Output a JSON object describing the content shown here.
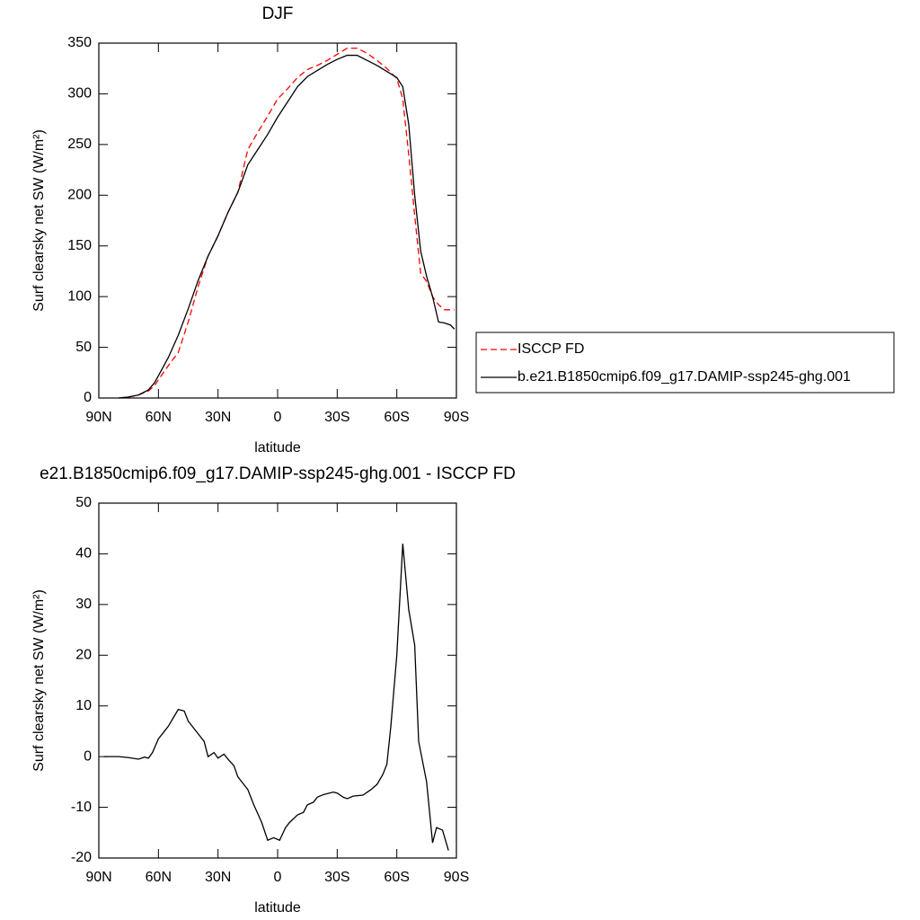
{
  "chart_data": [
    {
      "type": "line",
      "title": "DJF",
      "x_label": "latitude",
      "y_label": "Surf clearsky net SW (W/m²)",
      "x": [
        80,
        75,
        70,
        65,
        62,
        60,
        55,
        50,
        45,
        40,
        35,
        30,
        25,
        20,
        15,
        10,
        5,
        0,
        -5,
        -10,
        -15,
        -20,
        -25,
        -30,
        -35,
        -40,
        -45,
        -50,
        -55,
        -60,
        -63,
        -66,
        -69,
        -72,
        -75,
        -78,
        -81,
        -84,
        -87,
        -89
      ],
      "series": [
        {
          "name": "ISCCP FD",
          "color": "#ff0000",
          "line_style": "dashed",
          "values": [
            0,
            1,
            3,
            7,
            12,
            18,
            32,
            45,
            75,
            110,
            140,
            160,
            183,
            203,
            245,
            262,
            278,
            295,
            305,
            316,
            324,
            328,
            333,
            339,
            345,
            345,
            340,
            333,
            325,
            315,
            295,
            240,
            180,
            123,
            115,
            100,
            92,
            87,
            87,
            87
          ]
        },
        {
          "name": "b.e21.B1850cmip6.f09_g17.DAMIP-ssp245-ghg.001",
          "color": "#000000",
          "line_style": "solid",
          "values": [
            0,
            1,
            3,
            8,
            15,
            22,
            40,
            62,
            88,
            116,
            140,
            160,
            183,
            203,
            230,
            245,
            260,
            277,
            292,
            307,
            317,
            323,
            329,
            334,
            338,
            338,
            333,
            328,
            322,
            316,
            307,
            270,
            200,
            145,
            120,
            100,
            75,
            74,
            72,
            68
          ]
        }
      ],
      "xlim": [
        90,
        -90
      ],
      "xticks": [
        {
          "value": 90,
          "label": "90N"
        },
        {
          "value": 60,
          "label": "60N"
        },
        {
          "value": 30,
          "label": "30N"
        },
        0,
        {
          "value": -30,
          "label": "30S"
        },
        {
          "value": -60,
          "label": "60S"
        },
        {
          "value": -90,
          "label": "90S"
        }
      ],
      "ylim": [
        0,
        350
      ],
      "yticks": [
        0,
        50,
        100,
        150,
        200,
        250,
        300,
        350
      ],
      "legend": "right"
    },
    {
      "type": "line",
      "title": "e21.B1850cmip6.f09_g17.DAMIP-ssp245-ghg.001 - ISCCP FD",
      "x_label": "latitude",
      "y_label": "Surf clearsky net SW (W/m²)",
      "x": [
        87.5,
        80,
        75,
        70,
        67,
        65,
        63,
        60,
        57,
        55,
        52,
        50,
        47,
        45,
        40,
        37,
        35,
        32,
        30,
        27,
        25,
        22,
        20,
        18,
        15,
        12,
        8,
        5,
        2,
        -1,
        -4,
        -6,
        -10,
        -13,
        -15,
        -18,
        -20,
        -23,
        -28,
        -30,
        -33,
        -35,
        -38,
        -43,
        -47,
        -50,
        -53,
        -55,
        -57,
        -60,
        -63,
        -66,
        -69,
        -71,
        -75,
        -78,
        -80,
        -83,
        -86
      ],
      "series": [
        {
          "color": "#000000",
          "line_style": "solid",
          "values": [
            0,
            0,
            -0.2,
            -0.5,
            -0.1,
            -0.3,
            0.8,
            3.5,
            5,
            6,
            8,
            9.3,
            9,
            7,
            4.5,
            3,
            0,
            0.8,
            -0.3,
            0.5,
            -0.5,
            -1.8,
            -4,
            -5,
            -6.5,
            -9.5,
            -13,
            -16.5,
            -16,
            -16.5,
            -14,
            -13,
            -11.5,
            -11,
            -9.5,
            -9,
            -8,
            -7.5,
            -7,
            -7.2,
            -8,
            -8.3,
            -7.8,
            -7.6,
            -6.5,
            -5.5,
            -3.5,
            -1.5,
            6,
            20,
            42,
            29,
            22,
            3,
            -5,
            -17,
            -14,
            -14.5,
            -18.5
          ]
        }
      ],
      "xlim": [
        90,
        -90
      ],
      "xticks": [
        {
          "value": 90,
          "label": "90N"
        },
        {
          "value": 60,
          "label": "60N"
        },
        {
          "value": 30,
          "label": "30N"
        },
        0,
        {
          "value": -30,
          "label": "30S"
        },
        {
          "value": -60,
          "label": "60S"
        },
        {
          "value": -90,
          "label": "90S"
        }
      ],
      "ylim": [
        -20,
        50
      ],
      "yticks": [
        -20,
        -10,
        0,
        10,
        20,
        30,
        40,
        50
      ]
    }
  ]
}
